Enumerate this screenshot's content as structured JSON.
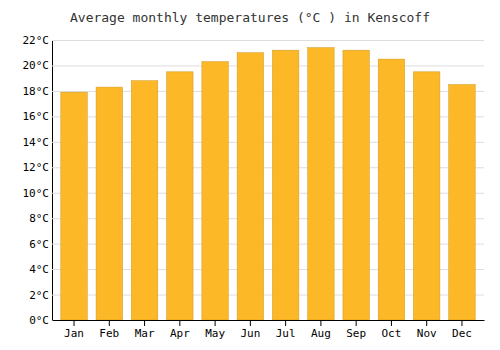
{
  "chart_data": {
    "type": "bar",
    "title": "Average monthly temperatures (°C ) in Kenscoff",
    "categories": [
      "Jan",
      "Feb",
      "Mar",
      "Apr",
      "May",
      "Jun",
      "Jul",
      "Aug",
      "Sep",
      "Oct",
      "Nov",
      "Dec"
    ],
    "values": [
      17.9,
      18.3,
      18.8,
      19.5,
      20.3,
      21.0,
      21.2,
      21.4,
      21.2,
      20.5,
      19.5,
      18.5
    ],
    "color": "#FDB827",
    "ylim": [
      0,
      22
    ],
    "yticks": [
      {
        "value": 0,
        "label": "0°C"
      },
      {
        "value": 2,
        "label": "2°C"
      },
      {
        "value": 4,
        "label": "4°C"
      },
      {
        "value": 6,
        "label": "6°C"
      },
      {
        "value": 8,
        "label": "8°C"
      },
      {
        "value": 10,
        "label": "10°C"
      },
      {
        "value": 12,
        "label": "12°C"
      },
      {
        "value": 14,
        "label": "14°C"
      },
      {
        "value": 16,
        "label": "16°C"
      },
      {
        "value": 18,
        "label": "18°C"
      },
      {
        "value": 20,
        "label": "20°C"
      },
      {
        "value": 22,
        "label": "22°C"
      }
    ],
    "grid": true
  }
}
